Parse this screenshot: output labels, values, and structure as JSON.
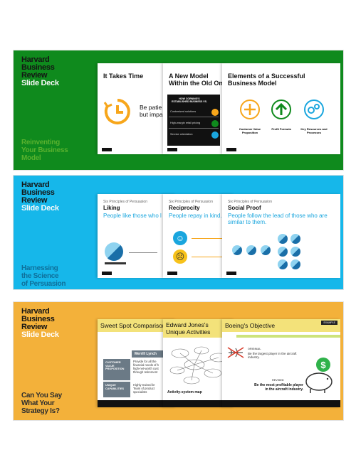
{
  "colors": {
    "green": "#0f8a1d",
    "blue": "#16b7ea",
    "gold": "#f3b13a",
    "orange": "#f7a61b",
    "accent_blue": "#1aa6de"
  },
  "brand": {
    "line1": "Harvard",
    "line2": "Business",
    "line3": "Review",
    "line4": "Slide Deck"
  },
  "panel1": {
    "subtitle": [
      "Reinventing",
      "Your Business",
      "Model"
    ],
    "slide1": {
      "title": "It Takes Time",
      "body": "Be patie",
      "body2": "but impa"
    },
    "slide2": {
      "title": "A New Model Within the Old One",
      "box_title": "HOW CORNING'S ESTABLISHED BUSINESS VS.",
      "items": [
        "Customized solutions",
        "High-margin retail pricing",
        "Service orientation"
      ]
    },
    "slide3": {
      "title": "Elements of a Successful Business Model",
      "labels": [
        "Customer Value Proposition",
        "Profit Formula",
        "Key Resources and Processes"
      ]
    }
  },
  "panel2": {
    "subtitle": [
      "Harnessing",
      "the Science",
      "of Persuasion"
    ],
    "slide1": {
      "kicker": "Six Principles of Persuasion",
      "head": "Liking",
      "line": "People like those who l"
    },
    "slide2": {
      "kicker": "Six Principles of Persuasion",
      "head": "Reciprocity",
      "line": "People repay in kind."
    },
    "slide3": {
      "kicker": "Six Principles of Persuasion",
      "head": "Social Proof",
      "line1": "People follow the lead of those who are",
      "line2": "similar to them."
    }
  },
  "panel3": {
    "subtitle": [
      "Can You Say",
      "What Your",
      "Strategy Is?"
    ],
    "slide1": {
      "title": "Sweet Spot Comparison",
      "col_head": "Merrill Lynch",
      "row1_label": "CUSTOMER VALUE PROPOSITION",
      "row1_text": [
        "Provide for all the",
        "financial needs of h",
        "high-net-worth cust",
        "through retirement"
      ],
      "row2_label": "UNIQUE CAPABILITIES",
      "row2_text": [
        "Highly trained br",
        "Team of product",
        "specialists"
      ]
    },
    "slide2": {
      "title1": "Edward Jones's",
      "title2": "Unique Activities",
      "caption": "Activity-system map"
    },
    "slide3": {
      "title": "Boeing's Objective",
      "badge": "EXAMPLE",
      "original_label": "ORIGINAL",
      "original_text": "Be the largest player in the aircraft industry.",
      "revised_label": "REVISED",
      "revised_text1": "Be the most profitable player",
      "revised_text2": "in the aircraft industry."
    }
  }
}
